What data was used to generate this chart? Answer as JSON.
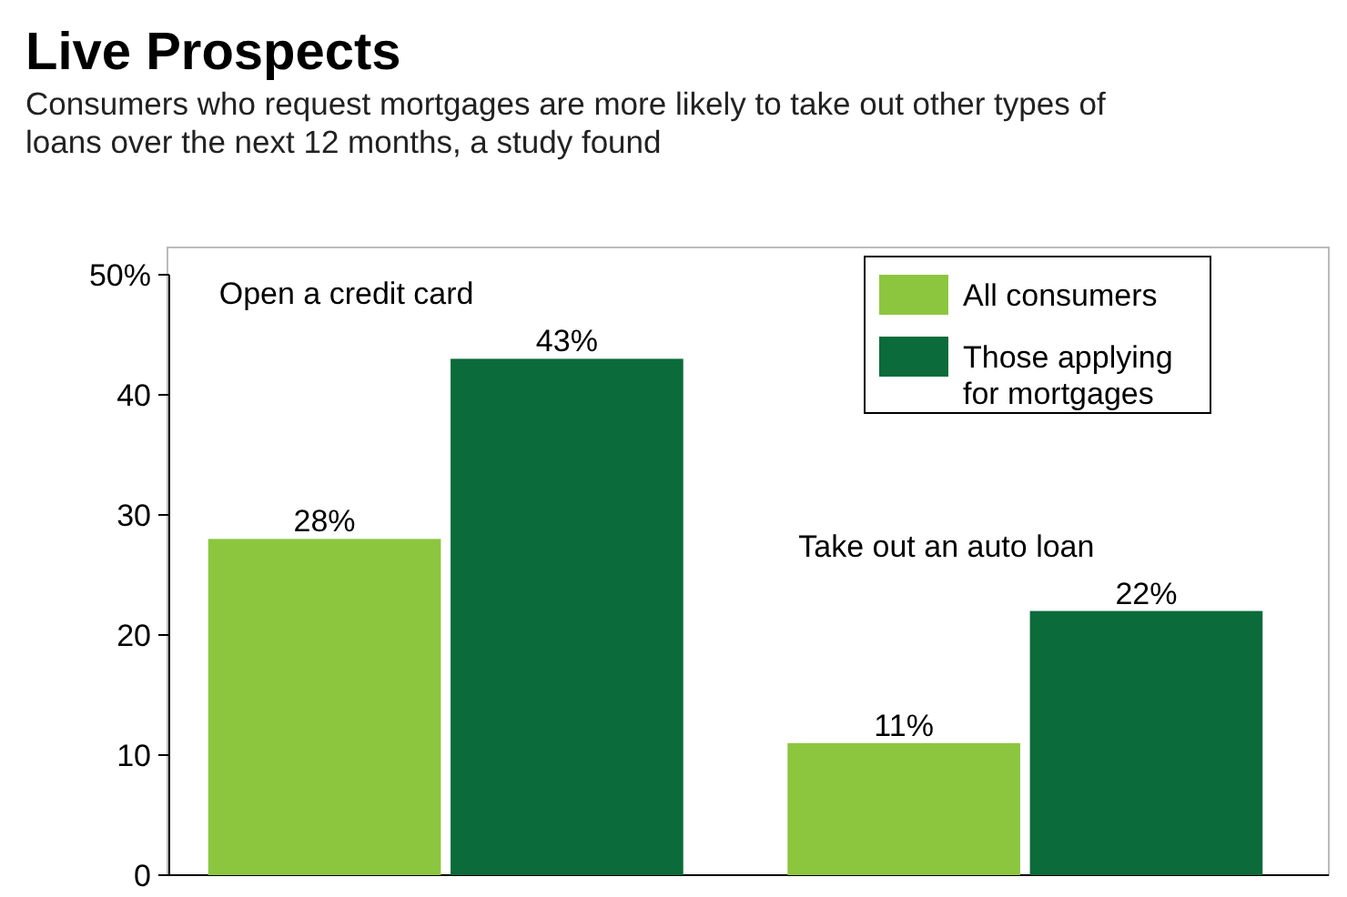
{
  "chart_data": {
    "type": "bar",
    "title": "Live Prospects",
    "subtitle": "Consumers who request mortgages are more likely to take out other types of loans over the next 12 months, a study found",
    "categories": [
      "Open a credit card",
      "Take out an auto loan"
    ],
    "series": [
      {
        "name": "All consumers",
        "color": "#8cc63f",
        "values": [
          28,
          11
        ],
        "value_labels": [
          "28%",
          "11%"
        ]
      },
      {
        "name": "Those applying for mortgages",
        "color": "#0b6b3a",
        "values": [
          43,
          22
        ],
        "value_labels": [
          "43%",
          "22%"
        ]
      }
    ],
    "ylim": [
      0,
      50
    ],
    "yticks": [
      0,
      10,
      20,
      30,
      40,
      {
        "value": 50,
        "label": "50%"
      }
    ],
    "grid": false,
    "legend": "top right"
  }
}
